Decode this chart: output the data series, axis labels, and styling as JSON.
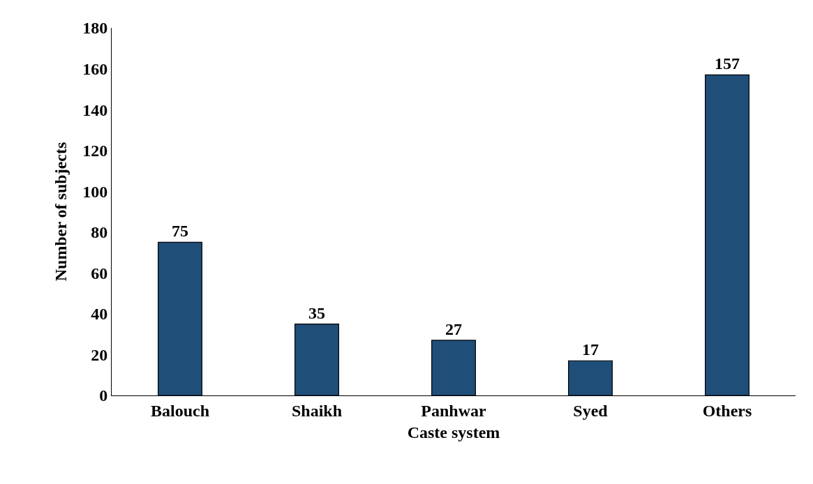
{
  "chart_data": {
    "type": "bar",
    "xlabel": "Caste system",
    "ylabel": "Number of subjects",
    "categories": [
      "Balouch",
      "Shaikh",
      "Panhwar",
      "Syed",
      "Others"
    ],
    "values": [
      75,
      35,
      27,
      17,
      157
    ],
    "color": "#1f4e79",
    "data_labels": true,
    "ylim": [
      0,
      180
    ],
    "yticks": [
      0,
      20,
      40,
      60,
      80,
      100,
      120,
      140,
      160,
      180
    ],
    "legend": false
  }
}
